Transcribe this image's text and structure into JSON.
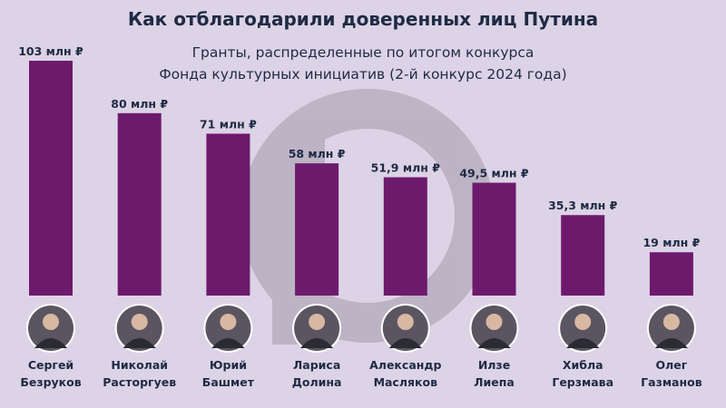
{
  "chart_data": {
    "type": "bar",
    "title": "Как отблагодарили доверенных лиц Путина",
    "subtitle_lines": [
      "Гранты, распределенные по итогом конкурса",
      "Фонда культурных инициатив (2-й конкурс 2024 года)"
    ],
    "unit": "млн ₽",
    "categories": [
      [
        "Сергей",
        "Безруков"
      ],
      [
        "Николай",
        "Расторгуев"
      ],
      [
        "Юрий",
        "Башмет"
      ],
      [
        "Лариса",
        "Долина"
      ],
      [
        "Александр",
        "Масляков"
      ],
      [
        "Илзе",
        "Лиепа"
      ],
      [
        "Хибла",
        "Герзмава"
      ],
      [
        "Олег",
        "Газманов"
      ]
    ],
    "values": [
      103,
      80,
      71,
      58,
      51.9,
      49.5,
      35.3,
      19
    ],
    "value_labels": [
      "103 млн ₽",
      "80 млн ₽",
      "71 млн ₽",
      "58 млн ₽",
      "51,9 млн ₽",
      "49,5 млн ₽",
      "35,3 млн ₽",
      "19 млн ₽"
    ],
    "ylim": [
      0,
      103
    ],
    "grid": false,
    "colors": {
      "bar": "#6e1a6c",
      "background": "#dcd3e6",
      "text": "#1f2a44",
      "watermark": "#b9b0c2"
    }
  }
}
